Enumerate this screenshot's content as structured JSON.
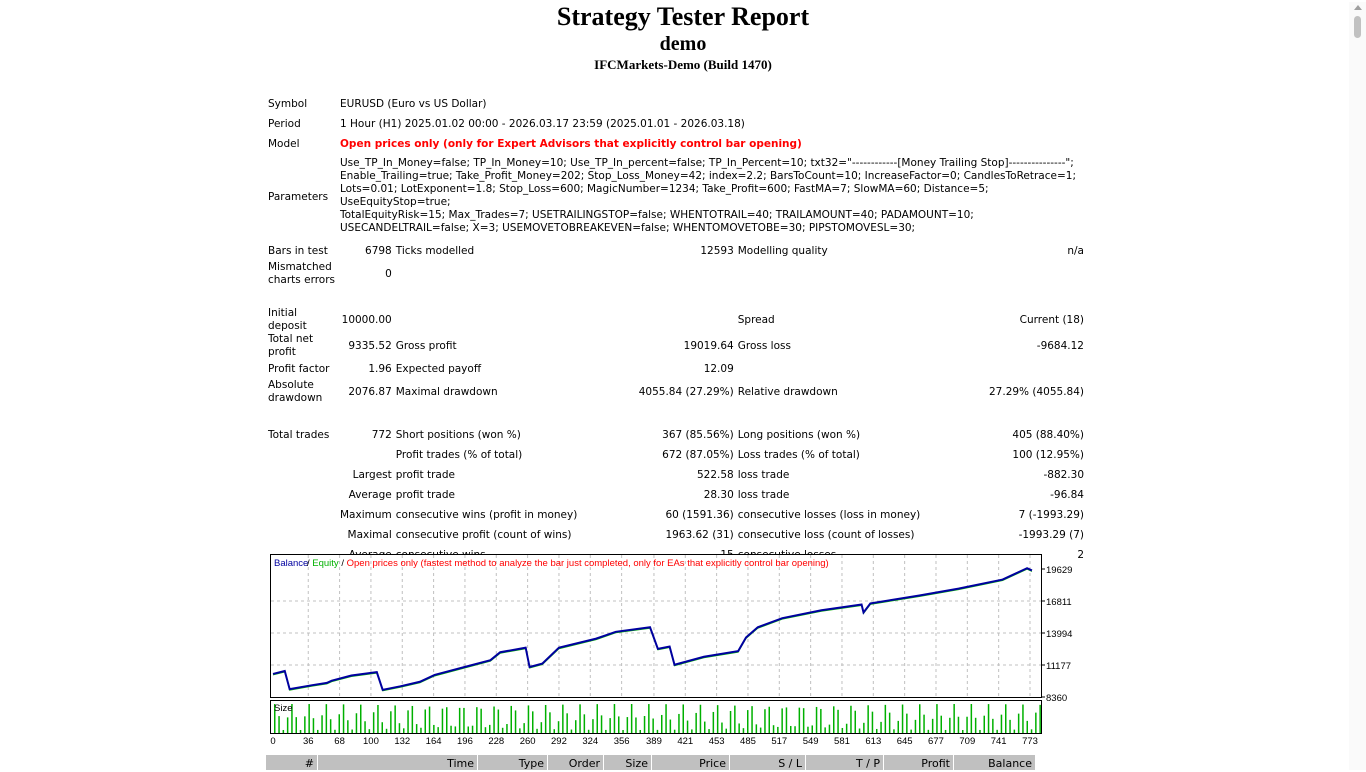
{
  "header": {
    "title": "Strategy Tester Report",
    "account": "demo",
    "server": "IFCMarkets-Demo (Build 1470)"
  },
  "info": {
    "symbol_label": "Symbol",
    "symbol": "EURUSD (Euro vs US Dollar)",
    "period_label": "Period",
    "period": "1 Hour (H1) 2025.01.02 00:00 - 2026.03.17 23:59 (2025.01.01 - 2026.03.18)",
    "model_label": "Model",
    "model": "Open prices only (only for Expert Advisors that explicitly control bar opening)",
    "parameters_label": "Parameters",
    "parameters": [
      "Use_TP_In_Money=false; TP_In_Money=10; Use_TP_In_percent=false; TP_In_Percent=10; txt32=\"------------[Money Trailing Stop]---------------\";",
      "Enable_Trailing=true; Take_Profit_Money=202; Stop_Loss_Money=42; index=2.2; BarsToCount=10; IncreaseFactor=0; CandlesToRetrace=1;",
      "Lots=0.01; LotExponent=1.8; Stop_Loss=600; MagicNumber=1234; Take_Profit=600; FastMA=7; SlowMA=60; Distance=5; UseEquityStop=true;",
      "TotalEquityRisk=15; Max_Trades=7; USETRAILINGSTOP=false; WHENTOTRAIL=40; TRAILAMOUNT=40; PADAMOUNT=10;",
      "USECANDELTRAIL=false; X=3; USEMOVETOBREAKEVEN=false; WHENTOMOVETOBE=30; PIPSTOMOVESL=30;"
    ]
  },
  "stats": {
    "bars_label": "Bars in test",
    "bars": "6798",
    "ticks_label": "Ticks modelled",
    "ticks": "12593",
    "quality_label": "Modelling quality",
    "quality": "n/a",
    "mismatch_label1": "Mismatched",
    "mismatch_label2": "charts errors",
    "mismatch": "0",
    "deposit_label": "Initial deposit",
    "deposit": "10000.00",
    "spread_label": "Spread",
    "spread": "Current (18)",
    "netprofit_label1": "Total net",
    "netprofit_label2": "profit",
    "netprofit": "9335.52",
    "grossprofit_label": "Gross profit",
    "grossprofit": "19019.64",
    "grossloss_label": "Gross loss",
    "grossloss": "-9684.12",
    "pf_label": "Profit factor",
    "pf": "1.96",
    "ep_label": "Expected payoff",
    "ep": "12.09",
    "absdd_label1": "Absolute",
    "absdd_label2": "drawdown",
    "absdd": "2076.87",
    "maxdd_label": "Maximal drawdown",
    "maxdd": "4055.84 (27.29%)",
    "reldd_label": "Relative drawdown",
    "reldd": "27.29% (4055.84)",
    "trades_label": "Total trades",
    "trades": "772",
    "short_label": "Short positions (won %)",
    "short": "367 (85.56%)",
    "long_label": "Long positions (won %)",
    "long": "405 (88.40%)",
    "pt_label": "Profit trades (% of total)",
    "pt": "672 (87.05%)",
    "lt_label": "Loss trades (% of total)",
    "lt": "100 (12.95%)",
    "largest_label": "Largest",
    "lp_label": "profit trade",
    "lp": "522.58",
    "ll_label": "loss trade",
    "ll": "-882.30",
    "average_label": "Average",
    "ap_label": "profit trade",
    "ap": "28.30",
    "al_label": "loss trade",
    "al": "-96.84",
    "maximum_label": "Maximum",
    "mcw_label": "consecutive wins (profit in money)",
    "mcw": "60 (1591.36)",
    "mcl_label": "consecutive losses (loss in money)",
    "mcl": "7 (-1993.29)",
    "maximal_label": "Maximal",
    "mcp_label": "consecutive profit (count of wins)",
    "mcp": "1963.62 (31)",
    "mcll_label": "consecutive loss (count of losses)",
    "mcll": "-1993.29 (7)",
    "average2_label": "Average",
    "acw_label": "consecutive wins",
    "acw": "15",
    "acl_label": "consecutive losses",
    "acl": "2"
  },
  "chart_data": {
    "type": "line",
    "legend": {
      "balance": "Balance",
      "equity": "Equity",
      "sep": " / ",
      "note": "Open prices only (fastest method to analyze the bar just completed, only for EAs that explicitly control bar opening)"
    },
    "colors": {
      "balance": "#0000a0",
      "equity": "#00b000",
      "note": "#ff0000",
      "size": "#00b000"
    },
    "ylim": [
      8360,
      19629
    ],
    "yticks": [
      "19629",
      "16811",
      "13994",
      "11177",
      "8360"
    ],
    "xticks": [
      "0",
      "36",
      "68",
      "100",
      "132",
      "164",
      "196",
      "228",
      "260",
      "292",
      "324",
      "356",
      "389",
      "421",
      "453",
      "485",
      "517",
      "549",
      "581",
      "613",
      "645",
      "677",
      "709",
      "741",
      "773"
    ],
    "xlim": [
      0,
      780
    ],
    "size_label": "Size",
    "balance": [
      [
        0,
        10390
      ],
      [
        12,
        10650
      ],
      [
        17,
        9050
      ],
      [
        40,
        9400
      ],
      [
        55,
        9600
      ],
      [
        60,
        9800
      ],
      [
        80,
        10250
      ],
      [
        106,
        10550
      ],
      [
        112,
        8990
      ],
      [
        130,
        9300
      ],
      [
        150,
        9700
      ],
      [
        165,
        10300
      ],
      [
        200,
        11100
      ],
      [
        222,
        11600
      ],
      [
        232,
        12300
      ],
      [
        258,
        12700
      ],
      [
        262,
        11000
      ],
      [
        275,
        11300
      ],
      [
        292,
        12700
      ],
      [
        330,
        13500
      ],
      [
        350,
        14100
      ],
      [
        385,
        14500
      ],
      [
        393,
        12600
      ],
      [
        405,
        12800
      ],
      [
        410,
        11200
      ],
      [
        440,
        11900
      ],
      [
        475,
        12400
      ],
      [
        483,
        13600
      ],
      [
        495,
        14500
      ],
      [
        520,
        15300
      ],
      [
        560,
        16000
      ],
      [
        601,
        16500
      ],
      [
        603,
        15800
      ],
      [
        610,
        16600
      ],
      [
        660,
        17300
      ],
      [
        700,
        17900
      ],
      [
        745,
        18700
      ],
      [
        770,
        19700
      ],
      [
        775,
        19500
      ]
    ]
  },
  "trades_table": {
    "headers": [
      "#",
      "Time",
      "Type",
      "Order",
      "Size",
      "Price",
      "S / L",
      "T / P",
      "Profit",
      "Balance"
    ]
  }
}
